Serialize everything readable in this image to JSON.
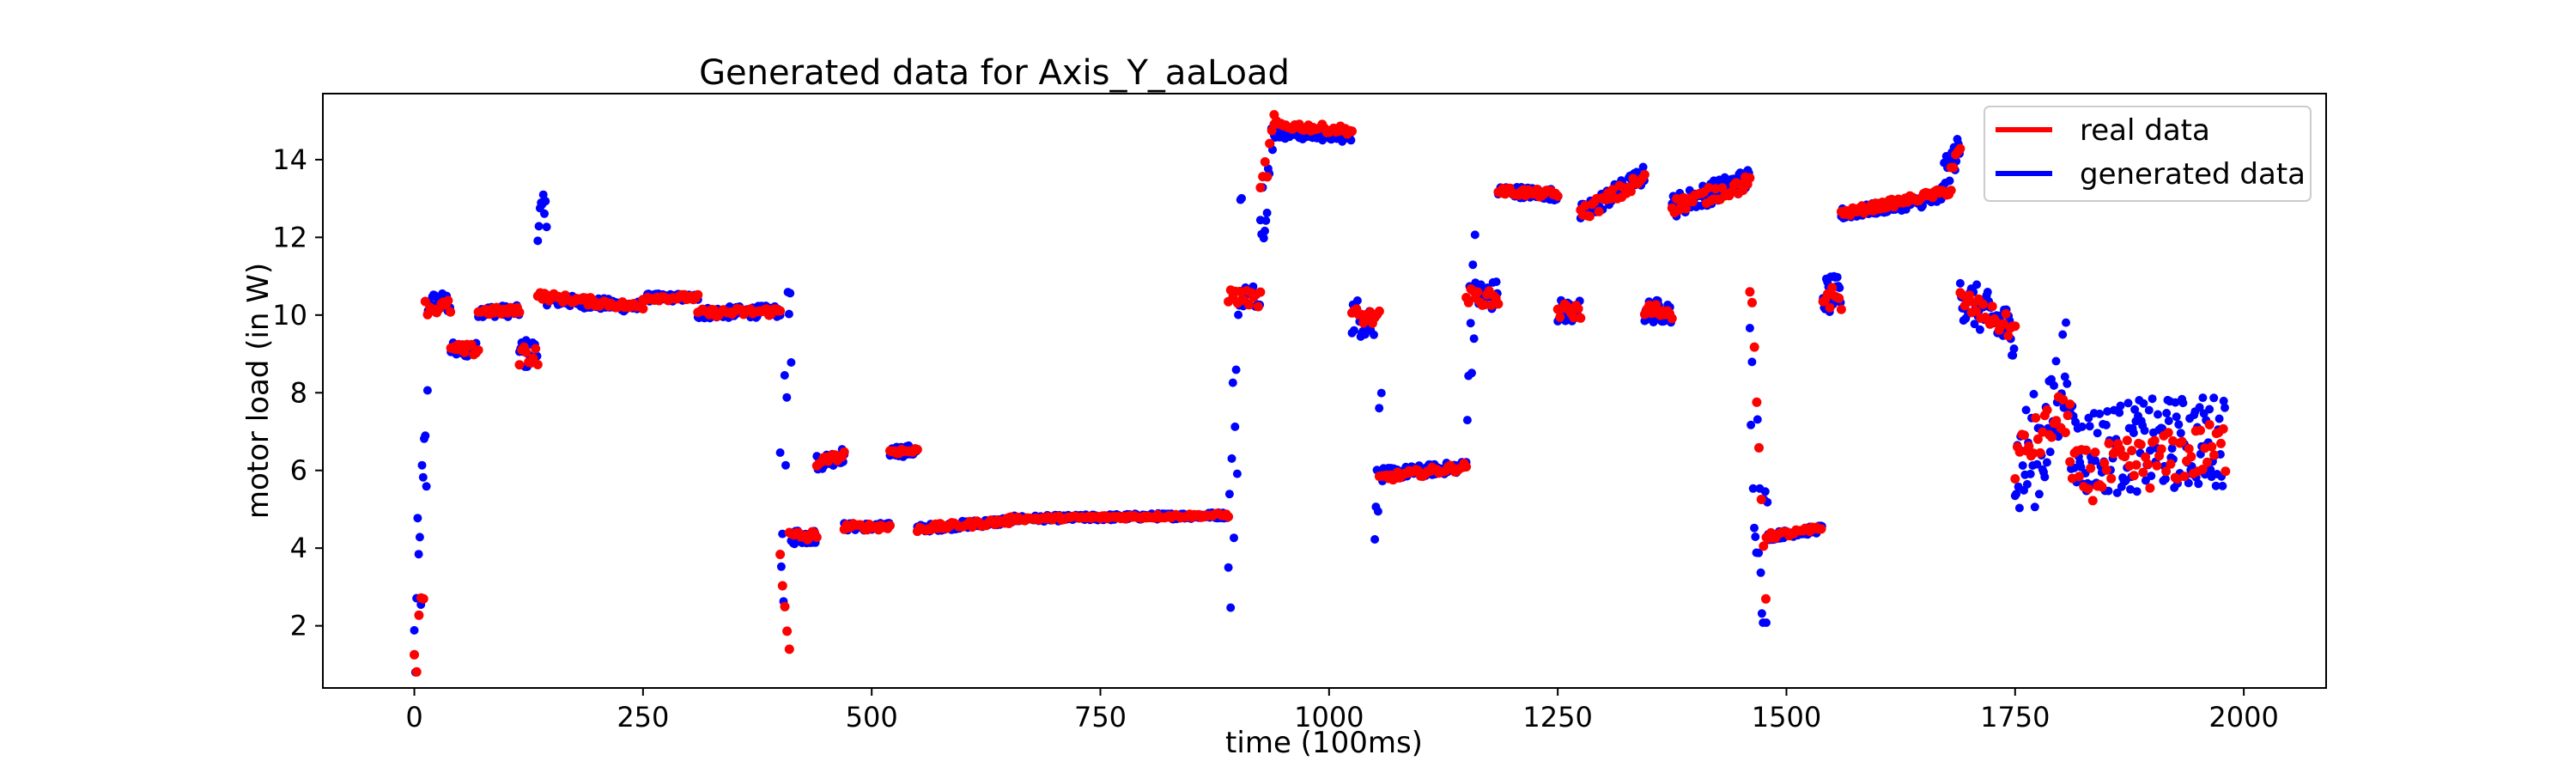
{
  "chart_data": {
    "type": "scatter",
    "title": "Generated data for Axis_Y_aaLoad",
    "xlabel": "time (100ms)",
    "ylabel": "motor load (in W)",
    "xlim": [
      -100,
      2090
    ],
    "ylim": [
      0.4,
      15.7
    ],
    "xticks": [
      0,
      250,
      500,
      750,
      1000,
      1250,
      1500,
      1750,
      2000
    ],
    "yticks": [
      2,
      4,
      6,
      8,
      10,
      12,
      14
    ],
    "grid": false,
    "legend_position": "top-right",
    "series": [
      {
        "name": "generated data",
        "color": "#0000ff",
        "segments": [
          {
            "x0": 0,
            "x1": 15,
            "y0": 1.2,
            "y1": 7.0,
            "noise": 2.2
          },
          {
            "x0": 15,
            "x1": 40,
            "y0": 10.3,
            "y1": 10.3,
            "noise": 0.3
          },
          {
            "x0": 40,
            "x1": 70,
            "y0": 9.1,
            "y1": 9.1,
            "noise": 0.2
          },
          {
            "x0": 70,
            "x1": 115,
            "y0": 10.1,
            "y1": 10.1,
            "noise": 0.15
          },
          {
            "x0": 115,
            "x1": 135,
            "y0": 9.0,
            "y1": 9.0,
            "noise": 0.4
          },
          {
            "x0": 135,
            "x1": 145,
            "y0": 12.5,
            "y1": 12.5,
            "noise": 0.6
          },
          {
            "x0": 145,
            "x1": 250,
            "y0": 10.4,
            "y1": 10.2,
            "noise": 0.15
          },
          {
            "x0": 250,
            "x1": 310,
            "y0": 10.45,
            "y1": 10.45,
            "noise": 0.1
          },
          {
            "x0": 310,
            "x1": 400,
            "y0": 10.05,
            "y1": 10.1,
            "noise": 0.15
          },
          {
            "x0": 400,
            "x1": 412,
            "y0": 3.5,
            "y1": 9.5,
            "noise": 3.0
          },
          {
            "x0": 412,
            "x1": 440,
            "y0": 4.3,
            "y1": 4.3,
            "noise": 0.2
          },
          {
            "x0": 440,
            "x1": 470,
            "y0": 6.2,
            "y1": 6.4,
            "noise": 0.2
          },
          {
            "x0": 470,
            "x1": 520,
            "y0": 4.55,
            "y1": 4.55,
            "noise": 0.1
          },
          {
            "x0": 520,
            "x1": 550,
            "y0": 6.5,
            "y1": 6.5,
            "noise": 0.15
          },
          {
            "x0": 550,
            "x1": 650,
            "y0": 4.5,
            "y1": 4.7,
            "noise": 0.1
          },
          {
            "x0": 650,
            "x1": 890,
            "y0": 4.75,
            "y1": 4.85,
            "noise": 0.08
          },
          {
            "x0": 890,
            "x1": 905,
            "y0": 3.0,
            "y1": 12.0,
            "noise": 3.0
          },
          {
            "x0": 905,
            "x1": 925,
            "y0": 10.5,
            "y1": 10.5,
            "noise": 0.3
          },
          {
            "x0": 925,
            "x1": 940,
            "y0": 12.5,
            "y1": 14.5,
            "noise": 1.0
          },
          {
            "x0": 940,
            "x1": 1025,
            "y0": 14.7,
            "y1": 14.6,
            "noise": 0.15
          },
          {
            "x0": 1025,
            "x1": 1050,
            "y0": 10.0,
            "y1": 9.8,
            "noise": 0.5
          },
          {
            "x0": 1050,
            "x1": 1060,
            "y0": 5.5,
            "y1": 7.5,
            "noise": 1.5
          },
          {
            "x0": 1060,
            "x1": 1150,
            "y0": 5.9,
            "y1": 6.1,
            "noise": 0.15
          },
          {
            "x0": 1150,
            "x1": 1160,
            "y0": 8.0,
            "y1": 12.0,
            "noise": 2.0
          },
          {
            "x0": 1160,
            "x1": 1185,
            "y0": 10.5,
            "y1": 10.5,
            "noise": 0.4
          },
          {
            "x0": 1185,
            "x1": 1250,
            "y0": 13.2,
            "y1": 13.1,
            "noise": 0.15
          },
          {
            "x0": 1250,
            "x1": 1275,
            "y0": 10.1,
            "y1": 10.1,
            "noise": 0.3
          },
          {
            "x0": 1275,
            "x1": 1345,
            "y0": 12.6,
            "y1": 13.6,
            "noise": 0.25
          },
          {
            "x0": 1345,
            "x1": 1375,
            "y0": 10.1,
            "y1": 10.1,
            "noise": 0.3
          },
          {
            "x0": 1375,
            "x1": 1460,
            "y0": 12.8,
            "y1": 13.5,
            "noise": 0.3
          },
          {
            "x0": 1460,
            "x1": 1480,
            "y0": 8.0,
            "y1": 3.0,
            "noise": 2.5
          },
          {
            "x0": 1480,
            "x1": 1540,
            "y0": 4.3,
            "y1": 4.5,
            "noise": 0.1
          },
          {
            "x0": 1540,
            "x1": 1560,
            "y0": 10.5,
            "y1": 10.5,
            "noise": 0.5
          },
          {
            "x0": 1560,
            "x1": 1670,
            "y0": 12.6,
            "y1": 13.0,
            "noise": 0.15
          },
          {
            "x0": 1670,
            "x1": 1690,
            "y0": 13.5,
            "y1": 14.3,
            "noise": 0.4
          },
          {
            "x0": 1690,
            "x1": 1750,
            "y0": 10.5,
            "y1": 9.5,
            "noise": 0.6
          },
          {
            "x0": 1750,
            "x1": 1790,
            "y0": 6.0,
            "y1": 7.0,
            "noise": 1.5
          },
          {
            "x0": 1790,
            "x1": 1810,
            "y0": 7.5,
            "y1": 9.0,
            "noise": 1.5
          },
          {
            "x0": 1810,
            "x1": 1980,
            "y0": 6.5,
            "y1": 6.8,
            "noise": 1.2
          }
        ]
      },
      {
        "name": "real data",
        "color": "#ff0000",
        "segments": [
          {
            "x0": 0,
            "x1": 12,
            "y0": 1.2,
            "y1": 4.1,
            "noise": 1.0
          },
          {
            "x0": 12,
            "x1": 40,
            "y0": 10.2,
            "y1": 10.2,
            "noise": 0.2
          },
          {
            "x0": 40,
            "x1": 70,
            "y0": 9.1,
            "y1": 9.1,
            "noise": 0.15
          },
          {
            "x0": 70,
            "x1": 115,
            "y0": 10.1,
            "y1": 10.1,
            "noise": 0.1
          },
          {
            "x0": 115,
            "x1": 135,
            "y0": 9.0,
            "y1": 9.0,
            "noise": 0.3
          },
          {
            "x0": 135,
            "x1": 250,
            "y0": 10.5,
            "y1": 10.2,
            "noise": 0.1
          },
          {
            "x0": 250,
            "x1": 310,
            "y0": 10.45,
            "y1": 10.45,
            "noise": 0.08
          },
          {
            "x0": 310,
            "x1": 400,
            "y0": 10.05,
            "y1": 10.1,
            "noise": 0.1
          },
          {
            "x0": 400,
            "x1": 410,
            "y0": 3.8,
            "y1": 1.5,
            "noise": 0.3
          },
          {
            "x0": 410,
            "x1": 440,
            "y0": 4.3,
            "y1": 4.3,
            "noise": 0.15
          },
          {
            "x0": 440,
            "x1": 470,
            "y0": 6.2,
            "y1": 6.4,
            "noise": 0.1
          },
          {
            "x0": 470,
            "x1": 520,
            "y0": 4.55,
            "y1": 4.55,
            "noise": 0.08
          },
          {
            "x0": 520,
            "x1": 550,
            "y0": 6.5,
            "y1": 6.5,
            "noise": 0.08
          },
          {
            "x0": 550,
            "x1": 650,
            "y0": 4.5,
            "y1": 4.7,
            "noise": 0.08
          },
          {
            "x0": 650,
            "x1": 890,
            "y0": 4.75,
            "y1": 4.85,
            "noise": 0.05
          },
          {
            "x0": 890,
            "x1": 925,
            "y0": 10.5,
            "y1": 10.4,
            "noise": 0.2
          },
          {
            "x0": 925,
            "x1": 940,
            "y0": 13.0,
            "y1": 14.8,
            "noise": 0.5
          },
          {
            "x0": 940,
            "x1": 1025,
            "y0": 14.9,
            "y1": 14.75,
            "noise": 0.1
          },
          {
            "x0": 1025,
            "x1": 1055,
            "y0": 10.0,
            "y1": 9.9,
            "noise": 0.2
          },
          {
            "x0": 1055,
            "x1": 1150,
            "y0": 5.8,
            "y1": 6.1,
            "noise": 0.1
          },
          {
            "x0": 1150,
            "x1": 1185,
            "y0": 10.5,
            "y1": 10.4,
            "noise": 0.2
          },
          {
            "x0": 1185,
            "x1": 1250,
            "y0": 13.2,
            "y1": 13.1,
            "noise": 0.1
          },
          {
            "x0": 1250,
            "x1": 1275,
            "y0": 10.1,
            "y1": 10.1,
            "noise": 0.2
          },
          {
            "x0": 1275,
            "x1": 1345,
            "y0": 12.6,
            "y1": 13.5,
            "noise": 0.2
          },
          {
            "x0": 1345,
            "x1": 1375,
            "y0": 10.1,
            "y1": 10.1,
            "noise": 0.2
          },
          {
            "x0": 1375,
            "x1": 1460,
            "y0": 12.8,
            "y1": 13.4,
            "noise": 0.2
          },
          {
            "x0": 1460,
            "x1": 1478,
            "y0": 11.0,
            "y1": 2.8,
            "noise": 0.5
          },
          {
            "x0": 1478,
            "x1": 1540,
            "y0": 4.3,
            "y1": 4.5,
            "noise": 0.08
          },
          {
            "x0": 1540,
            "x1": 1560,
            "y0": 10.5,
            "y1": 10.4,
            "noise": 0.3
          },
          {
            "x0": 1560,
            "x1": 1680,
            "y0": 12.6,
            "y1": 13.2,
            "noise": 0.1
          },
          {
            "x0": 1680,
            "x1": 1690,
            "y0": 13.8,
            "y1": 14.2,
            "noise": 0.2
          },
          {
            "x0": 1690,
            "x1": 1750,
            "y0": 10.4,
            "y1": 9.6,
            "noise": 0.3
          },
          {
            "x0": 1750,
            "x1": 1810,
            "y0": 6.3,
            "y1": 7.6,
            "noise": 0.6
          },
          {
            "x0": 1810,
            "x1": 1980,
            "y0": 5.8,
            "y1": 6.6,
            "noise": 0.7
          }
        ]
      }
    ]
  }
}
